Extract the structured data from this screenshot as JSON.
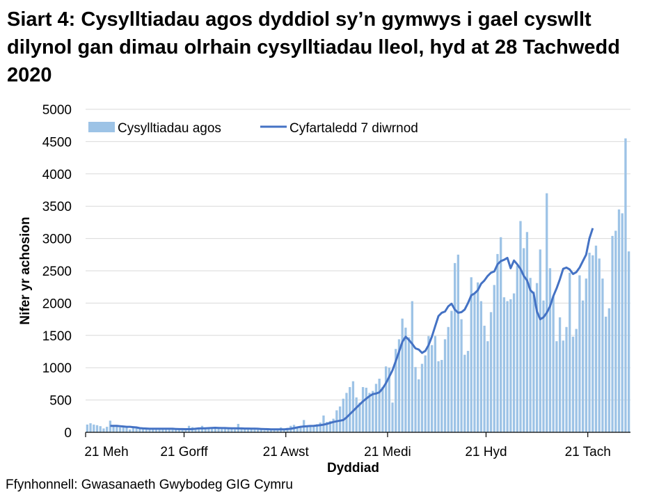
{
  "title": "Siart 4: Cysylltiadau agos dyddiol sy’n gymwys i gael cyswllt dilynol gan dimau olrhain cysylltiadau lleol, hyd at 28 Tachwedd 2020",
  "source": "Ffynhonnell: Gwasanaeth Gwybodeg GIG Cymru",
  "colors": {
    "bars": "#9dc3e6",
    "line": "#4472c4",
    "grid": "#d9d9d9",
    "axis": "#000000"
  },
  "chart_data": {
    "type": "bar+line",
    "title": "Siart 4: Cysylltiadau agos dyddiol sy’n gymwys i gael cyswllt dilynol gan dimau olrhain cysylltiadau lleol, hyd at 28 Tachwedd 2020",
    "xlabel": "Dyddiad",
    "ylabel": "Nifer yr achosion",
    "ylim": [
      0,
      5000
    ],
    "yticks": [
      0,
      500,
      1000,
      1500,
      2000,
      2500,
      3000,
      3500,
      4000,
      4500,
      5000
    ],
    "xticks": [
      "21 Meh",
      "21 Gorff",
      "21 Awst",
      "21 Medi",
      "21 Hyd",
      "21 Tach"
    ],
    "xtick_day_index": [
      0,
      30,
      61,
      92,
      122,
      153
    ],
    "x_start": "21 Meh 2020",
    "x_end": "28 Tach 2020",
    "grid": true,
    "legend_position": "top-left inside",
    "legend": [
      "Cysylltiadau agos",
      "Cyfartaledd 7 diwrnod"
    ],
    "series": [
      {
        "name": "Cysylltiadau agos",
        "type": "bar",
        "values": [
          120,
          140,
          120,
          110,
          95,
          60,
          85,
          180,
          110,
          90,
          75,
          75,
          75,
          45,
          75,
          60,
          75,
          75,
          60,
          60,
          50,
          55,
          55,
          50,
          55,
          50,
          55,
          50,
          50,
          40,
          40,
          100,
          80,
          60,
          70,
          100,
          60,
          60,
          60,
          55,
          55,
          50,
          60,
          55,
          55,
          45,
          130,
          50,
          50,
          45,
          45,
          40,
          40,
          40,
          30,
          40,
          35,
          50,
          40,
          75,
          55,
          70,
          100,
          115,
          85,
          80,
          190,
          85,
          110,
          100,
          125,
          150,
          260,
          160,
          175,
          210,
          340,
          400,
          520,
          610,
          700,
          790,
          540,
          460,
          700,
          690,
          610,
          640,
          750,
          830,
          700,
          1020,
          1000,
          460,
          1290,
          1440,
          1760,
          1620,
          1470,
          2030,
          1010,
          820,
          1060,
          1190,
          1490,
          1350,
          1490,
          1100,
          1120,
          1440,
          1630,
          1880,
          2620,
          2750,
          1750,
          1200,
          1260,
          2400,
          2160,
          2320,
          2030,
          1650,
          1410,
          1860,
          2280,
          2760,
          3020,
          2090,
          2030,
          2060,
          2150,
          2580,
          3270,
          2850,
          3100,
          2390,
          2180,
          2310,
          2830,
          2040,
          3700,
          2540,
          2110,
          1410,
          1780,
          1420,
          1630,
          2470,
          1480,
          1600,
          2430,
          2040,
          2380,
          2780,
          2740,
          2890,
          2690,
          2380,
          1790,
          1920,
          3040,
          3120,
          3450,
          3390,
          4550,
          2800
        ]
      },
      {
        "name": "Cyfartaledd 7 diwrnod",
        "type": "line",
        "start_index": 7,
        "values": [
          100,
          100,
          100,
          95,
          90,
          85,
          85,
          80,
          75,
          65,
          60,
          58,
          55,
          55,
          55,
          55,
          55,
          55,
          55,
          55,
          52,
          50,
          50,
          48,
          48,
          50,
          55,
          60,
          60,
          62,
          65,
          68,
          70,
          68,
          66,
          66,
          64,
          62,
          62,
          60,
          60,
          58,
          58,
          56,
          56,
          55,
          52,
          50,
          48,
          46,
          45,
          45,
          45,
          46,
          50,
          55,
          65,
          75,
          85,
          90,
          95,
          98,
          100,
          105,
          110,
          118,
          130,
          145,
          160,
          170,
          180,
          190,
          230,
          280,
          330,
          380,
          430,
          480,
          520,
          560,
          590,
          600,
          620,
          680,
          760,
          860,
          960,
          1100,
          1250,
          1400,
          1480,
          1430,
          1370,
          1300,
          1280,
          1230,
          1260,
          1350,
          1480,
          1640,
          1800,
          1850,
          1870,
          1950,
          1990,
          1900,
          1850,
          1860,
          1900,
          2000,
          2120,
          2150,
          2200,
          2300,
          2350,
          2420,
          2470,
          2490,
          2600,
          2650,
          2670,
          2700,
          2540,
          2660,
          2600,
          2530,
          2420,
          2350,
          2200,
          2150,
          1870,
          1750,
          1780,
          1850,
          1950,
          2110,
          2230,
          2370,
          2530,
          2550,
          2520,
          2450,
          2480,
          2550,
          2650,
          2750,
          3000,
          3160
        ]
      }
    ]
  },
  "legend": {
    "bars_label": "Cysylltiadau agos",
    "line_label": "Cyfartaledd 7 diwrnod"
  },
  "axes": {
    "y_ticks": [
      "0",
      "500",
      "1000",
      "1500",
      "2000",
      "2500",
      "3000",
      "3500",
      "4000",
      "4500",
      "5000"
    ],
    "x_ticks": [
      "21 Meh",
      "21 Gorff",
      "21 Awst",
      "21 Medi",
      "21 Hyd",
      "21 Tach"
    ],
    "x_title": "Dyddiad",
    "y_title": "Nifer yr achosion"
  }
}
